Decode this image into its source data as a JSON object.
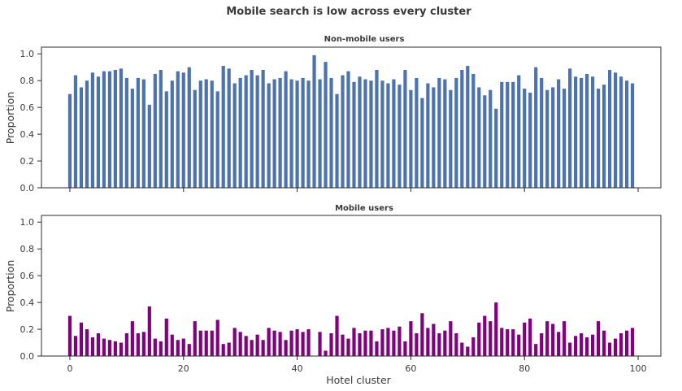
{
  "figure": {
    "suptitle": "Mobile search is low across every cluster"
  },
  "chart_data": [
    {
      "type": "bar",
      "title": "Non-mobile users",
      "xlabel": "",
      "ylabel": "Proportion",
      "color": "#4c72b0",
      "ylim": [
        0,
        1.05
      ],
      "xlim": [
        -5,
        104
      ],
      "xticks": [
        0,
        20,
        40,
        60,
        80,
        100
      ],
      "yticks": [
        0,
        0.2,
        0.4,
        0.6,
        0.8,
        1.0
      ],
      "xtick_labels_visible": false,
      "x": [
        0,
        1,
        2,
        3,
        4,
        5,
        6,
        7,
        8,
        9,
        10,
        11,
        12,
        13,
        14,
        15,
        16,
        17,
        18,
        19,
        20,
        21,
        22,
        23,
        24,
        25,
        26,
        27,
        28,
        29,
        30,
        31,
        32,
        33,
        34,
        35,
        36,
        37,
        38,
        39,
        40,
        41,
        42,
        43,
        44,
        45,
        46,
        47,
        48,
        49,
        50,
        51,
        52,
        53,
        54,
        55,
        56,
        57,
        58,
        59,
        60,
        61,
        62,
        63,
        64,
        65,
        66,
        67,
        68,
        69,
        70,
        71,
        72,
        73,
        74,
        75,
        76,
        77,
        78,
        79,
        80,
        81,
        82,
        83,
        84,
        85,
        86,
        87,
        88,
        89,
        90,
        91,
        92,
        93,
        94,
        95,
        96,
        97,
        98,
        99
      ],
      "values": [
        0.7,
        0.84,
        0.75,
        0.8,
        0.86,
        0.83,
        0.87,
        0.87,
        0.88,
        0.89,
        0.82,
        0.74,
        0.82,
        0.81,
        0.62,
        0.85,
        0.88,
        0.72,
        0.8,
        0.87,
        0.86,
        0.9,
        0.73,
        0.8,
        0.81,
        0.8,
        0.72,
        0.91,
        0.89,
        0.78,
        0.82,
        0.84,
        0.88,
        0.84,
        0.88,
        0.78,
        0.81,
        0.82,
        0.87,
        0.81,
        0.8,
        0.82,
        0.8,
        0.99,
        0.81,
        0.94,
        0.82,
        0.7,
        0.84,
        0.87,
        0.79,
        0.83,
        0.81,
        0.8,
        0.88,
        0.8,
        0.78,
        0.81,
        0.77,
        0.88,
        0.73,
        0.82,
        0.67,
        0.78,
        0.75,
        0.82,
        0.81,
        0.73,
        0.82,
        0.88,
        0.91,
        0.85,
        0.75,
        0.69,
        0.73,
        0.59,
        0.79,
        0.79,
        0.79,
        0.84,
        0.74,
        0.71,
        0.9,
        0.82,
        0.73,
        0.75,
        0.81,
        0.74,
        0.89,
        0.83,
        0.82,
        0.85,
        0.83,
        0.74,
        0.77,
        0.88,
        0.86,
        0.83,
        0.8,
        0.78
      ]
    },
    {
      "type": "bar",
      "title": "Mobile users",
      "xlabel": "Hotel cluster",
      "ylabel": "Proportion",
      "color": "#800080",
      "ylim": [
        0,
        1.05
      ],
      "xlim": [
        -5,
        104
      ],
      "xticks": [
        0,
        20,
        40,
        60,
        80,
        100
      ],
      "yticks": [
        0,
        0.2,
        0.4,
        0.6,
        0.8,
        1.0
      ],
      "xtick_labels_visible": true,
      "x": [
        0,
        1,
        2,
        3,
        4,
        5,
        6,
        7,
        8,
        9,
        10,
        11,
        12,
        13,
        14,
        15,
        16,
        17,
        18,
        19,
        20,
        21,
        22,
        23,
        24,
        25,
        26,
        27,
        28,
        29,
        30,
        31,
        32,
        33,
        34,
        35,
        36,
        37,
        38,
        39,
        40,
        41,
        42,
        43,
        44,
        45,
        46,
        47,
        48,
        49,
        50,
        51,
        52,
        53,
        54,
        55,
        56,
        57,
        58,
        59,
        60,
        61,
        62,
        63,
        64,
        65,
        66,
        67,
        68,
        69,
        70,
        71,
        72,
        73,
        74,
        75,
        76,
        77,
        78,
        79,
        80,
        81,
        82,
        83,
        84,
        85,
        86,
        87,
        88,
        89,
        90,
        91,
        92,
        93,
        94,
        95,
        96,
        97,
        98,
        99
      ],
      "values": [
        0.3,
        0.15,
        0.25,
        0.2,
        0.14,
        0.17,
        0.13,
        0.12,
        0.11,
        0.1,
        0.17,
        0.26,
        0.17,
        0.18,
        0.37,
        0.13,
        0.11,
        0.28,
        0.16,
        0.12,
        0.13,
        0.09,
        0.26,
        0.19,
        0.19,
        0.19,
        0.27,
        0.09,
        0.1,
        0.21,
        0.18,
        0.15,
        0.12,
        0.16,
        0.12,
        0.21,
        0.19,
        0.18,
        0.12,
        0.19,
        0.2,
        0.18,
        0.2,
        0.0,
        0.18,
        0.04,
        0.17,
        0.3,
        0.16,
        0.13,
        0.21,
        0.17,
        0.19,
        0.19,
        0.11,
        0.2,
        0.21,
        0.19,
        0.22,
        0.11,
        0.26,
        0.17,
        0.32,
        0.21,
        0.24,
        0.17,
        0.19,
        0.26,
        0.17,
        0.1,
        0.07,
        0.14,
        0.25,
        0.3,
        0.26,
        0.4,
        0.21,
        0.2,
        0.2,
        0.16,
        0.25,
        0.28,
        0.09,
        0.17,
        0.26,
        0.24,
        0.18,
        0.26,
        0.1,
        0.15,
        0.17,
        0.14,
        0.16,
        0.26,
        0.19,
        0.1,
        0.13,
        0.17,
        0.19,
        0.21
      ]
    }
  ]
}
